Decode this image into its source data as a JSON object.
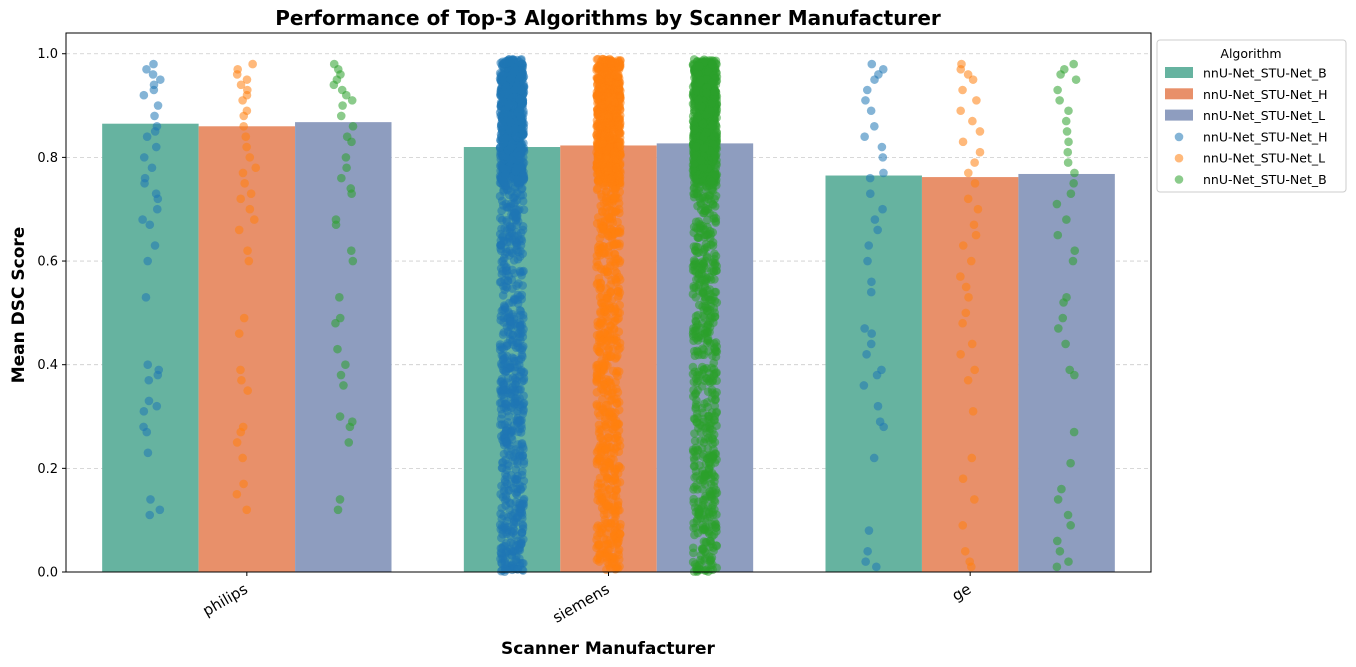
{
  "chart_data": {
    "type": "bar",
    "title": "Performance of Top-3 Algorithms by Scanner Manufacturer",
    "xlabel": "Scanner Manufacturer",
    "ylabel": "Mean DSC Score",
    "categories": [
      "philips",
      "siemens",
      "ge"
    ],
    "ylim": [
      0,
      1.04
    ],
    "yticks": [
      "0.0",
      "0.2",
      "0.4",
      "0.6",
      "0.8",
      "1.0"
    ],
    "ytick_values": [
      0.0,
      0.2,
      0.4,
      0.6,
      0.8,
      1.0
    ],
    "grid": "y-dashed",
    "legend_title": "Algorithm",
    "legend_position": "outside-top-right",
    "series": [
      {
        "name": "nnU-Net_STU-Net_B",
        "kind": "bar",
        "color": "#66b3a0",
        "values": [
          0.865,
          0.82,
          0.765
        ]
      },
      {
        "name": "nnU-Net_STU-Net_H",
        "kind": "bar",
        "color": "#e8906a",
        "values": [
          0.86,
          0.823,
          0.762
        ]
      },
      {
        "name": "nnU-Net_STU-Net_L",
        "kind": "bar",
        "color": "#8e9dbf",
        "values": [
          0.868,
          0.827,
          0.768
        ]
      }
    ],
    "strip_series": [
      {
        "name": "nnU-Net_STU-Net_H",
        "color": "#1f77b4",
        "points": [
          [
            0.98,
            0.97,
            0.96,
            0.95,
            0.94,
            0.93,
            0.92,
            0.9,
            0.88,
            0.86,
            0.85,
            0.84,
            0.82,
            0.8,
            0.78,
            0.76,
            0.75,
            0.73,
            0.72,
            0.7,
            0.68,
            0.67,
            0.63,
            0.6,
            0.53,
            0.4,
            0.39,
            0.38,
            0.37,
            0.33,
            0.32,
            0.31,
            0.28,
            0.27,
            0.23,
            0.14,
            0.12,
            0.11
          ],
          "dense",
          [
            0.98,
            0.97,
            0.96,
            0.95,
            0.93,
            0.91,
            0.89,
            0.86,
            0.84,
            0.82,
            0.8,
            0.77,
            0.76,
            0.73,
            0.7,
            0.68,
            0.66,
            0.63,
            0.6,
            0.56,
            0.54,
            0.47,
            0.46,
            0.44,
            0.42,
            0.39,
            0.38,
            0.36,
            0.32,
            0.29,
            0.28,
            0.22,
            0.08,
            0.04,
            0.02,
            0.01
          ]
        ]
      },
      {
        "name": "nnU-Net_STU-Net_L",
        "color": "#ff7f0e",
        "points": [
          [
            0.98,
            0.97,
            0.96,
            0.95,
            0.94,
            0.93,
            0.92,
            0.91,
            0.89,
            0.88,
            0.86,
            0.84,
            0.82,
            0.8,
            0.78,
            0.77,
            0.75,
            0.73,
            0.72,
            0.7,
            0.68,
            0.66,
            0.62,
            0.6,
            0.49,
            0.46,
            0.39,
            0.37,
            0.35,
            0.28,
            0.27,
            0.25,
            0.22,
            0.17,
            0.15,
            0.12
          ],
          "dense",
          [
            0.98,
            0.97,
            0.96,
            0.95,
            0.93,
            0.91,
            0.89,
            0.87,
            0.85,
            0.83,
            0.81,
            0.79,
            0.77,
            0.75,
            0.72,
            0.7,
            0.67,
            0.65,
            0.63,
            0.6,
            0.57,
            0.55,
            0.53,
            0.5,
            0.48,
            0.44,
            0.42,
            0.39,
            0.37,
            0.31,
            0.22,
            0.18,
            0.14,
            0.09,
            0.04,
            0.02,
            0.01
          ]
        ]
      },
      {
        "name": "nnU-Net_STU-Net_B",
        "color": "#2ca02c",
        "points": [
          [
            0.98,
            0.97,
            0.96,
            0.95,
            0.94,
            0.93,
            0.92,
            0.91,
            0.9,
            0.88,
            0.86,
            0.84,
            0.83,
            0.8,
            0.78,
            0.76,
            0.74,
            0.73,
            0.68,
            0.67,
            0.62,
            0.6,
            0.53,
            0.49,
            0.48,
            0.43,
            0.4,
            0.38,
            0.36,
            0.3,
            0.29,
            0.28,
            0.25,
            0.14,
            0.12
          ],
          "dense",
          [
            0.98,
            0.97,
            0.96,
            0.95,
            0.93,
            0.91,
            0.89,
            0.87,
            0.85,
            0.83,
            0.81,
            0.79,
            0.77,
            0.75,
            0.73,
            0.71,
            0.68,
            0.65,
            0.62,
            0.6,
            0.53,
            0.52,
            0.49,
            0.47,
            0.44,
            0.39,
            0.38,
            0.27,
            0.21,
            0.16,
            0.14,
            0.11,
            0.09,
            0.06,
            0.04,
            0.02,
            0.01
          ]
        ]
      }
    ]
  }
}
